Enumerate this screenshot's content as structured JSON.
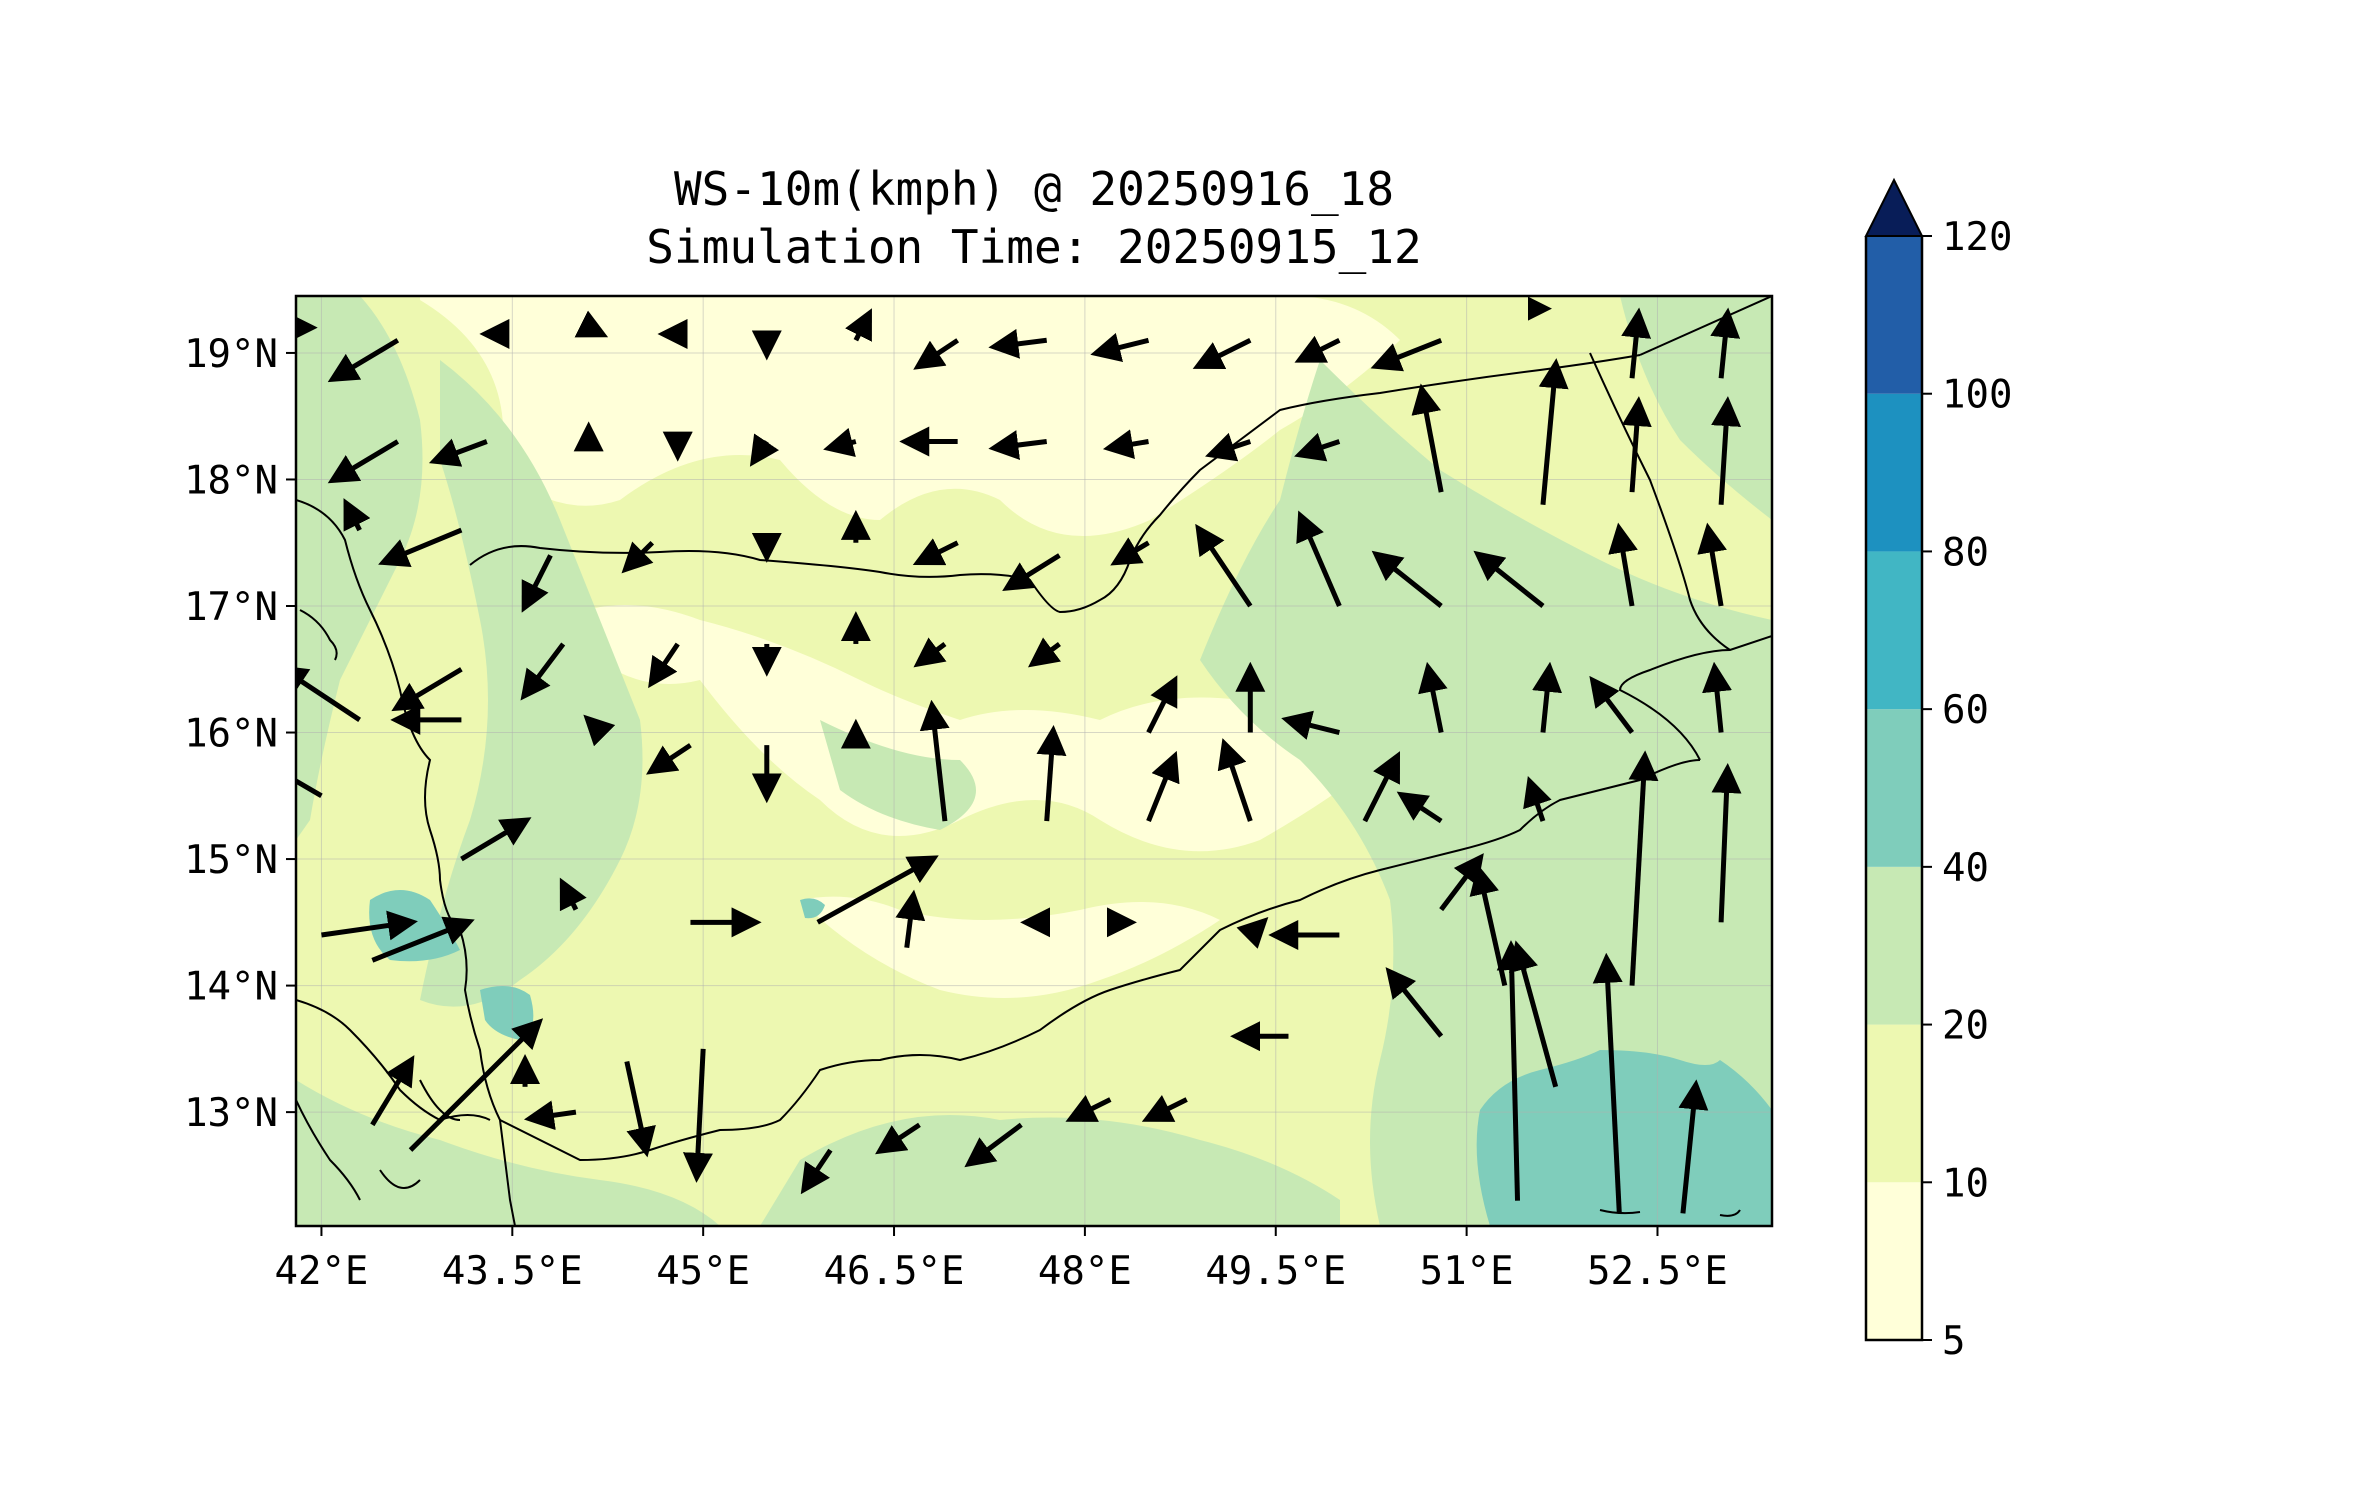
{
  "title": "WS-10m(kmph) @ 20250916_18",
  "subtitle": "Simulation Time: 20250915_12",
  "x_ticks": [
    {
      "lon": 42.0,
      "label": "42°E"
    },
    {
      "lon": 43.5,
      "label": "43.5°E"
    },
    {
      "lon": 45.0,
      "label": "45°E"
    },
    {
      "lon": 46.5,
      "label": "46.5°E"
    },
    {
      "lon": 48.0,
      "label": "48°E"
    },
    {
      "lon": 49.5,
      "label": "49.5°E"
    },
    {
      "lon": 51.0,
      "label": "51°E"
    },
    {
      "lon": 52.5,
      "label": "52.5°E"
    }
  ],
  "y_ticks": [
    {
      "lat": 19,
      "label": "19°N"
    },
    {
      "lat": 18,
      "label": "18°N"
    },
    {
      "lat": 17,
      "label": "17°N"
    },
    {
      "lat": 16,
      "label": "16°N"
    },
    {
      "lat": 15,
      "label": "15°N"
    },
    {
      "lat": 14,
      "label": "14°N"
    },
    {
      "lat": 13,
      "label": "13°N"
    }
  ],
  "colorbar": {
    "levels": [
      "5",
      "10",
      "20",
      "40",
      "60",
      "80",
      "100",
      "120"
    ],
    "colors": [
      "#ffffd9",
      "#edf8b1",
      "#c7e9b4",
      "#7fcdbb",
      "#41b6c4",
      "#1d91c0",
      "#225ea8",
      "#0c2c84"
    ],
    "extend_color": "#081d58",
    "extend": "max"
  },
  "chart_data": {
    "type": "map",
    "variable": "WS-10m(kmph)",
    "lon_range": [
      41.8,
      53.4
    ],
    "lat_range": [
      12.1,
      19.45
    ],
    "grid": true,
    "wind_vectors_dx_dy": [
      [
        41.9,
        19.2,
        0.0,
        0.0
      ],
      [
        42.6,
        19.1,
        -0.5,
        -0.3
      ],
      [
        43.4,
        19.15,
        -0.1,
        0.0
      ],
      [
        44.1,
        19.2,
        0.1,
        -0.05
      ],
      [
        44.8,
        19.15,
        -0.1,
        0.0
      ],
      [
        45.5,
        19.1,
        0.0,
        -0.1
      ],
      [
        46.2,
        19.1,
        0.1,
        0.2
      ],
      [
        47.0,
        19.1,
        -0.3,
        -0.2
      ],
      [
        47.7,
        19.1,
        -0.4,
        -0.05
      ],
      [
        48.5,
        19.1,
        -0.4,
        -0.1
      ],
      [
        49.3,
        19.1,
        -0.4,
        -0.2
      ],
      [
        50.0,
        19.1,
        -0.3,
        -0.15
      ],
      [
        50.8,
        19.1,
        -0.5,
        -0.2
      ],
      [
        51.6,
        19.35,
        0.0,
        0.0
      ],
      [
        52.3,
        18.8,
        0.05,
        0.5
      ],
      [
        53.0,
        18.8,
        0.05,
        0.5
      ],
      [
        42.6,
        18.3,
        -0.5,
        -0.3
      ],
      [
        43.3,
        18.3,
        -0.4,
        -0.15
      ],
      [
        44.1,
        18.3,
        0.0,
        0.1
      ],
      [
        44.8,
        18.3,
        0.0,
        -0.1
      ],
      [
        45.5,
        18.3,
        -0.1,
        -0.15
      ],
      [
        46.2,
        18.3,
        -0.2,
        -0.05
      ],
      [
        47.0,
        18.3,
        -0.4,
        0.0
      ],
      [
        47.7,
        18.3,
        -0.4,
        -0.05
      ],
      [
        48.5,
        18.3,
        -0.3,
        -0.05
      ],
      [
        49.3,
        18.3,
        -0.3,
        -0.1
      ],
      [
        50.0,
        18.3,
        -0.3,
        -0.1
      ],
      [
        50.8,
        17.9,
        -0.15,
        0.8
      ],
      [
        51.6,
        17.8,
        0.1,
        1.1
      ],
      [
        52.3,
        17.9,
        0.05,
        0.7
      ],
      [
        53.0,
        17.8,
        0.05,
        0.8
      ],
      [
        42.3,
        17.6,
        -0.1,
        0.2
      ],
      [
        43.1,
        17.6,
        -0.6,
        -0.25
      ],
      [
        43.8,
        17.4,
        -0.2,
        -0.4
      ],
      [
        44.6,
        17.5,
        -0.2,
        -0.2
      ],
      [
        45.5,
        17.5,
        0.0,
        -0.1
      ],
      [
        46.2,
        17.5,
        0.0,
        0.2
      ],
      [
        47.0,
        17.5,
        -0.3,
        -0.15
      ],
      [
        47.8,
        17.4,
        -0.4,
        -0.25
      ],
      [
        48.5,
        17.5,
        -0.25,
        -0.15
      ],
      [
        49.3,
        17.0,
        -0.4,
        0.6
      ],
      [
        50.0,
        17.0,
        -0.3,
        0.7
      ],
      [
        50.8,
        17.0,
        -0.5,
        0.4
      ],
      [
        51.6,
        17.0,
        -0.5,
        0.4
      ],
      [
        52.3,
        17.0,
        -0.1,
        0.6
      ],
      [
        53.0,
        17.0,
        -0.1,
        0.6
      ],
      [
        42.3,
        16.1,
        -0.6,
        0.4
      ],
      [
        43.1,
        16.5,
        -0.5,
        -0.3
      ],
      [
        43.9,
        16.7,
        -0.3,
        -0.4
      ],
      [
        44.8,
        16.7,
        -0.2,
        -0.3
      ],
      [
        45.5,
        16.7,
        0.0,
        -0.2
      ],
      [
        46.2,
        16.7,
        0.0,
        0.2
      ],
      [
        46.9,
        16.7,
        -0.2,
        -0.15
      ],
      [
        47.8,
        16.7,
        -0.2,
        -0.15
      ],
      [
        48.5,
        16.0,
        0.2,
        0.4
      ],
      [
        49.3,
        16.0,
        0.0,
        0.5
      ],
      [
        50.0,
        16.0,
        -0.4,
        0.1
      ],
      [
        50.8,
        16.0,
        -0.1,
        0.5
      ],
      [
        51.6,
        16.0,
        0.05,
        0.5
      ],
      [
        52.3,
        16.0,
        -0.3,
        0.4
      ],
      [
        53.0,
        16.0,
        -0.05,
        0.5
      ],
      [
        42.0,
        15.5,
        -0.6,
        0.35
      ],
      [
        43.1,
        16.1,
        -0.5,
        0.0
      ],
      [
        44.2,
        16.0,
        -0.1,
        0.1
      ],
      [
        44.9,
        15.9,
        -0.3,
        -0.2
      ],
      [
        45.5,
        15.9,
        0.0,
        -0.4
      ],
      [
        46.2,
        16.0,
        0.0,
        0.05
      ],
      [
        46.9,
        15.3,
        -0.1,
        0.9
      ],
      [
        47.7,
        15.3,
        0.05,
        0.7
      ],
      [
        48.5,
        15.3,
        0.2,
        0.5
      ],
      [
        49.3,
        15.3,
        -0.2,
        0.6
      ],
      [
        50.2,
        15.3,
        0.25,
        0.5
      ],
      [
        50.8,
        15.3,
        -0.3,
        0.2
      ],
      [
        51.6,
        15.3,
        -0.1,
        0.3
      ],
      [
        52.3,
        14.0,
        0.1,
        1.8
      ],
      [
        53.0,
        14.5,
        0.05,
        1.2
      ],
      [
        42.0,
        14.4,
        0.7,
        0.1
      ],
      [
        42.4,
        14.2,
        0.75,
        0.3
      ],
      [
        43.1,
        15.0,
        0.5,
        0.3
      ],
      [
        44.0,
        14.6,
        -0.1,
        0.2
      ],
      [
        44.9,
        14.5,
        0.5,
        0.0
      ],
      [
        45.9,
        14.5,
        0.9,
        0.5
      ],
      [
        46.6,
        14.3,
        0.05,
        0.4
      ],
      [
        47.6,
        14.5,
        -0.05,
        0.0
      ],
      [
        48.3,
        14.5,
        0.05,
        0.0
      ],
      [
        49.3,
        14.4,
        0.1,
        0.1
      ],
      [
        50.0,
        14.4,
        -0.5,
        0.0
      ],
      [
        50.8,
        14.6,
        0.3,
        0.4
      ],
      [
        51.3,
        14.0,
        -0.2,
        0.9
      ],
      [
        51.7,
        13.2,
        -0.3,
        1.1
      ],
      [
        52.2,
        12.2,
        -0.1,
        2.0
      ],
      [
        42.4,
        12.9,
        0.3,
        0.5
      ],
      [
        42.7,
        12.7,
        1.0,
        1.0
      ],
      [
        43.6,
        13.2,
        0.0,
        0.2
      ],
      [
        44.0,
        13.0,
        -0.35,
        -0.05
      ],
      [
        44.4,
        13.4,
        0.15,
        -0.7
      ],
      [
        45.0,
        13.5,
        -0.05,
        -1.0
      ],
      [
        46.0,
        12.7,
        -0.2,
        -0.3
      ],
      [
        46.7,
        12.9,
        -0.3,
        -0.2
      ],
      [
        47.5,
        12.9,
        -0.4,
        -0.3
      ],
      [
        48.2,
        13.1,
        -0.3,
        -0.15
      ],
      [
        48.8,
        13.1,
        -0.3,
        -0.15
      ],
      [
        49.6,
        13.6,
        -0.4,
        0.0
      ],
      [
        50.8,
        13.6,
        -0.4,
        0.5
      ],
      [
        51.4,
        12.3,
        -0.05,
        2.0
      ],
      [
        52.7,
        12.2,
        0.1,
        1.0
      ]
    ]
  }
}
